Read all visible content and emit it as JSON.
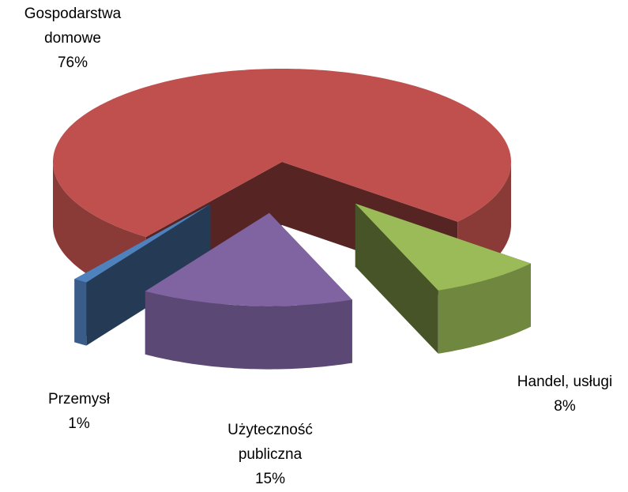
{
  "chart_data": {
    "type": "pie",
    "categories": [
      "Gospodarstwa domowe",
      "Handel, usługi",
      "Użyteczność publiczna",
      "Przemysł"
    ],
    "values": [
      76,
      8,
      15,
      1
    ],
    "value_labels": [
      "76%",
      "8%",
      "15%",
      "1%"
    ],
    "colors": [
      "#c0504d",
      "#9bbb59",
      "#8064a2",
      "#4f81bd"
    ]
  }
}
